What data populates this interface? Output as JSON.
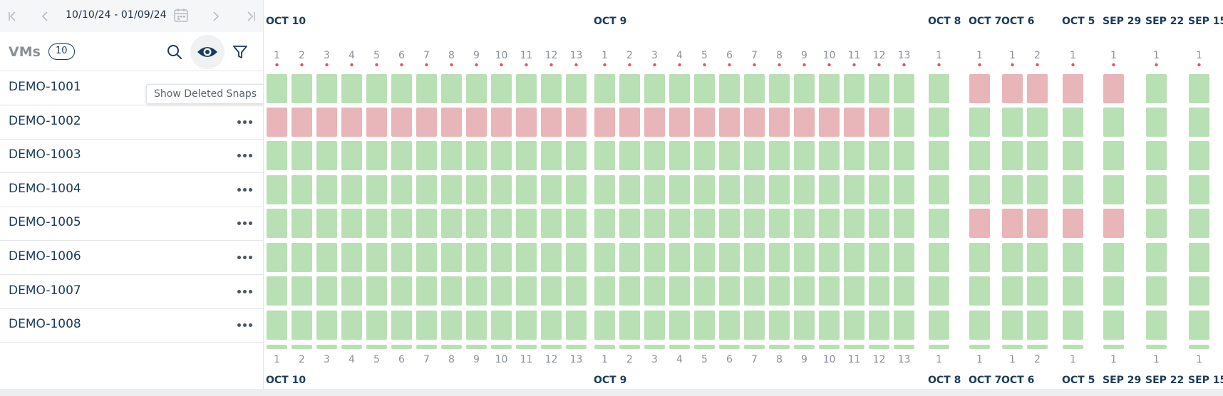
{
  "date_bar": {
    "range": "10/10/24 - 01/09/24"
  },
  "vm_header": {
    "title": "VMs",
    "count": "10"
  },
  "tooltip": "Show Deleted Snaps",
  "vms": [
    "DEMO-1001",
    "DEMO-1002",
    "DEMO-1003",
    "DEMO-1004",
    "DEMO-1005",
    "DEMO-1006",
    "DEMO-1007",
    "DEMO-1008"
  ],
  "colors": {
    "success": "#b9dfb5",
    "failure": "#e8b5b9",
    "dot": "#e05561",
    "navy": "#1b3b5a"
  },
  "columns": [
    {
      "date": "OCT 10",
      "hours": [
        "1",
        "2",
        "3",
        "4",
        "5",
        "6",
        "7",
        "8",
        "9",
        "10",
        "11",
        "12",
        "13"
      ]
    },
    {
      "date": "OCT 9",
      "hours": [
        "1",
        "2",
        "3",
        "4",
        "5",
        "6",
        "7",
        "8",
        "9",
        "10",
        "11",
        "12",
        "13"
      ]
    },
    {
      "date": "OCT 8",
      "hours": [
        "1"
      ]
    },
    {
      "date": "OCT 7",
      "hours": [
        "1"
      ]
    },
    {
      "date": "OCT 6",
      "hours": [
        "1",
        "2"
      ]
    },
    {
      "date": "OCT 5",
      "hours": [
        "1"
      ]
    },
    {
      "date": "SEP 29",
      "hours": [
        "1"
      ]
    },
    {
      "date": "SEP 22",
      "hours": [
        "1"
      ]
    },
    {
      "date": "SEP 15",
      "hours": [
        "1"
      ]
    }
  ],
  "status_grid": [
    "SSSSSSSSSSSSSSSSSSSSSSSSSSSFFFFF",
    "FFFFFFFFFFFFFFFFFFFFFFFFFSSSSSSS",
    "SSSSSSSSSSSSSSSSSSSSSSSSSSSSSSSS",
    "SSSSSSSSSSSSSSSSSSSSSSSSSSSSSSSS",
    "SSSSSSSSSSSSSSSSSSSSSSSSSSSFFFFF",
    "SSSSSSSSSSSSSSSSSSSSSSSSSSSSSSSS",
    "SSSSSSSSSSSSSSSSSSSSSSSSSSSSSSSS",
    "SSSSSSSSSSSSSSSSSSSSSSSSSSSSSSSS",
    "SSSSSSSSSSSSSSSSSSSSSSSSSSSSSSSS"
  ]
}
